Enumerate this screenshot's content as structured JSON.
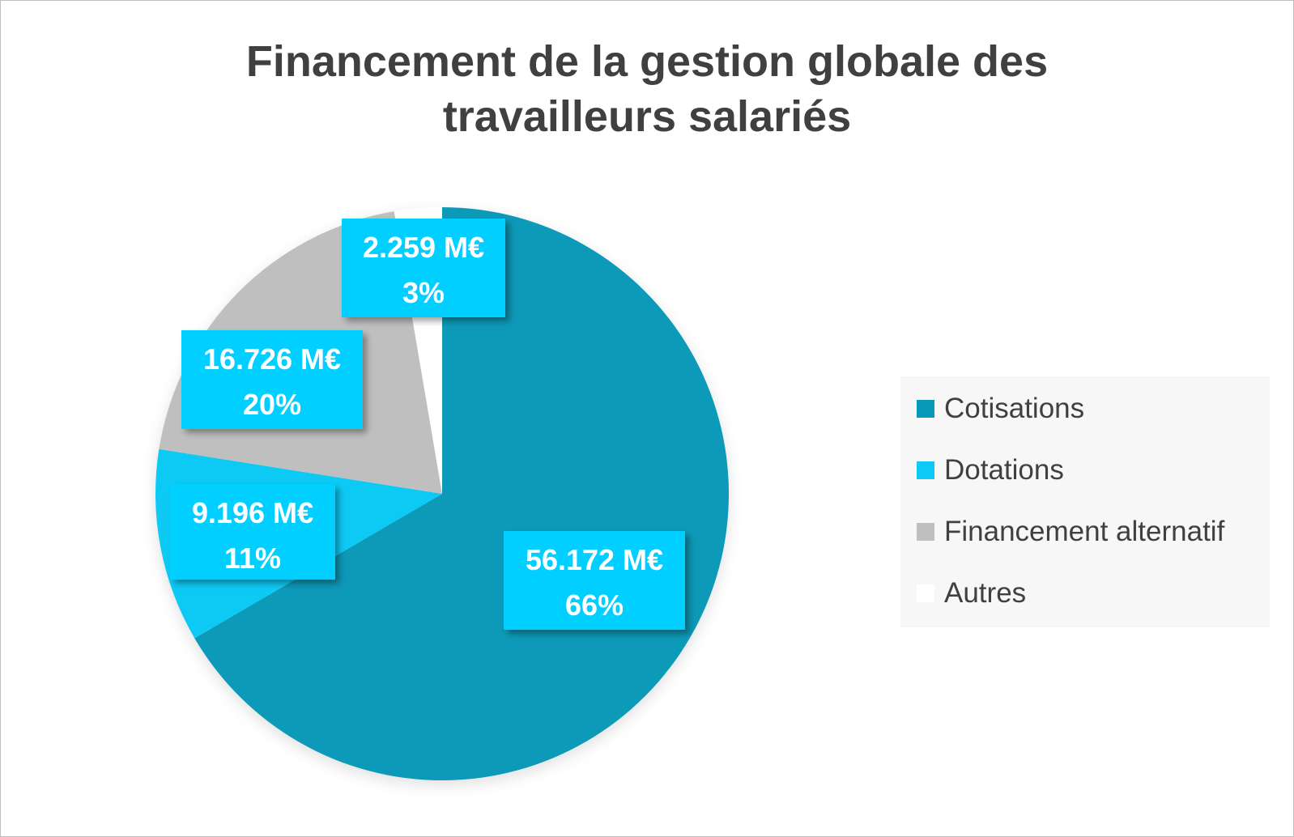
{
  "title": {
    "line1": "Financement de la gestion globale des",
    "line2": "travailleurs salariés"
  },
  "chart_data": {
    "type": "pie",
    "title": "Financement de la gestion globale des travailleurs salariés",
    "unit": "M€",
    "legend_position": "right",
    "slices": [
      {
        "name": "Cotisations",
        "value": 56172,
        "value_label": "56.172 M€",
        "percent_label": "66%",
        "color": "#0799b8"
      },
      {
        "name": "Dotations",
        "value": 9196,
        "value_label": "9.196 M€",
        "percent_label": "11%",
        "color": "#0ccaf5"
      },
      {
        "name": "Financement alternatif",
        "value": 16726,
        "value_label": "16.726 M€",
        "percent_label": "20%",
        "color": "#bfbfbf"
      },
      {
        "name": "Autres",
        "value": 2259,
        "value_label": "2.259 M€",
        "percent_label": "3%",
        "color": "#ffffff"
      }
    ]
  },
  "colors": {
    "label_box": "#00cfff",
    "label_text": "#ffffff",
    "title_text": "#404040",
    "legend_background": "#f7f7f7"
  }
}
